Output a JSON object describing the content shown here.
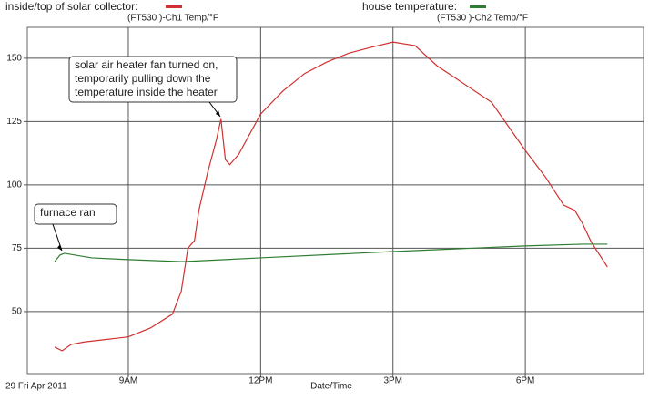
{
  "chart_data": {
    "type": "line",
    "x_label": "Date/Time",
    "date_label": "29 Fri Apr 2011",
    "xlim": [
      6.71,
      20.68
    ],
    "xticks": [
      {
        "value": 9,
        "label": "9AM"
      },
      {
        "value": 12,
        "label": "12PM"
      },
      {
        "value": 15,
        "label": "3PM"
      },
      {
        "value": 18,
        "label": "6PM"
      }
    ],
    "ylim": [
      25.5,
      162.2
    ],
    "yticks": [
      50,
      75,
      100,
      125,
      150
    ],
    "grid": true,
    "series": [
      {
        "name": "inside/top of solar collector:",
        "channel": "(FT530   )-Ch1 Temp/°F",
        "color": "#d03030",
        "x": [
          7.33,
          7.5,
          7.7,
          8.0,
          8.5,
          9.0,
          9.5,
          10.0,
          10.2,
          10.35,
          10.5,
          10.6,
          10.8,
          11.0,
          11.1,
          11.2,
          11.3,
          11.5,
          12.0,
          12.5,
          13.0,
          13.5,
          14.0,
          14.5,
          15.0,
          15.5,
          16.0,
          17.23,
          18.0,
          18.46,
          18.87,
          19.12,
          19.29,
          19.49,
          19.86
        ],
        "values": [
          36,
          34.5,
          37,
          38,
          39,
          40,
          43.5,
          49,
          58,
          75,
          78,
          90,
          105,
          118,
          126,
          110,
          108,
          112,
          128,
          137,
          144,
          148.5,
          152,
          154.3,
          156.4,
          155,
          147,
          132.7,
          113.6,
          103,
          92,
          90,
          85,
          77.6,
          67.6
        ]
      },
      {
        "name": "house temperature:",
        "channel": "(FT530   )-Ch2 Temp/°F",
        "color": "#2e7d32",
        "x": [
          7.33,
          7.45,
          7.55,
          8.17,
          9.0,
          10.22,
          12.0,
          15.0,
          18.0,
          19.29,
          19.86
        ],
        "values": [
          69.7,
          72.3,
          73,
          71.2,
          70.5,
          69.7,
          71.2,
          73.7,
          75.9,
          76.6,
          76.6
        ]
      }
    ],
    "annotations": [
      [
        "solar air heater fan turned on,",
        "temporarily pulling down the",
        "temperature inside the heater"
      ],
      [
        "furnace ran"
      ]
    ]
  }
}
